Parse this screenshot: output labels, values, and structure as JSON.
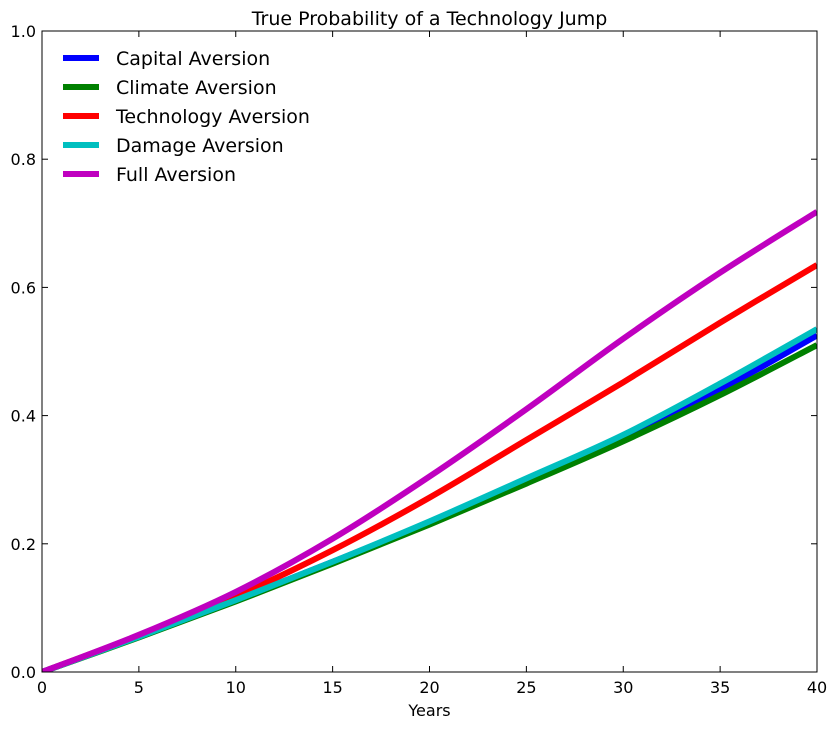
{
  "chart_data": {
    "type": "line",
    "title": "True Probability of a Technology Jump",
    "xlabel": "Years",
    "ylabel": "",
    "xlim": [
      0,
      40
    ],
    "ylim": [
      0.0,
      1.0
    ],
    "xticks": [
      "0",
      "5",
      "10",
      "15",
      "20",
      "25",
      "30",
      "35",
      "40"
    ],
    "yticks": [
      "0.0",
      "0.2",
      "0.4",
      "0.6",
      "0.8",
      "1.0"
    ],
    "grid": false,
    "legend_position": "top-left",
    "x": [
      0,
      5,
      10,
      15,
      20,
      25,
      30,
      35,
      40
    ],
    "series": [
      {
        "name": "Capital Aversion",
        "color": "#0000ff",
        "values": [
          0.0,
          0.055,
          0.112,
          0.172,
          0.233,
          0.298,
          0.364,
          0.44,
          0.525
        ]
      },
      {
        "name": "Climate Aversion",
        "color": "#008000",
        "values": [
          0.0,
          0.054,
          0.11,
          0.169,
          0.23,
          0.294,
          0.36,
          0.432,
          0.51
        ]
      },
      {
        "name": "Technology Aversion",
        "color": "#ff0000",
        "values": [
          0.0,
          0.057,
          0.118,
          0.19,
          0.272,
          0.362,
          0.452,
          0.545,
          0.635
        ]
      },
      {
        "name": "Damage Aversion",
        "color": "#00bfbf",
        "values": [
          0.0,
          0.055,
          0.112,
          0.172,
          0.235,
          0.302,
          0.37,
          0.45,
          0.535
        ]
      },
      {
        "name": "Full Aversion",
        "color": "#bf00bf",
        "values": [
          0.0,
          0.058,
          0.125,
          0.208,
          0.305,
          0.41,
          0.52,
          0.623,
          0.718
        ]
      }
    ]
  }
}
